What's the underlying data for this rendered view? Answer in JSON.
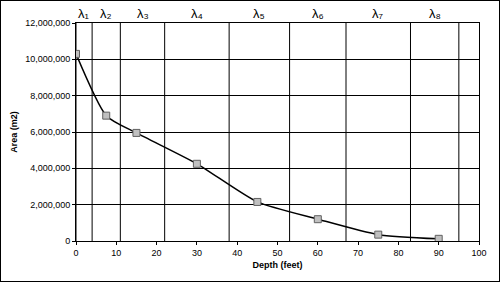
{
  "chart_data": {
    "type": "line",
    "x_label": "Depth (feet)",
    "y_label": "Area (m2)",
    "x": [
      0,
      7.5,
      15,
      30,
      45,
      60,
      75,
      90
    ],
    "values": [
      10300000,
      6900000,
      5950000,
      4250000,
      2150000,
      1200000,
      350000,
      120000
    ],
    "color": "#000000",
    "marker": "square",
    "xlim": [
      0,
      100
    ],
    "xticks": [
      0,
      10,
      20,
      30,
      40,
      50,
      60,
      70,
      80,
      90,
      100
    ],
    "ylim": [
      0,
      12000000
    ],
    "yticks": [
      0,
      {
        "value": 2000000,
        "label": "2,000,000"
      },
      {
        "value": 4000000,
        "label": "4,000,000"
      },
      {
        "value": 6000000,
        "label": "6,000,000"
      },
      {
        "value": 8000000,
        "label": "8,000,000"
      },
      {
        "value": 10000000,
        "label": "10,000,000"
      },
      {
        "value": 12000000,
        "label": "12,000,000"
      }
    ],
    "grid": true,
    "regions": {
      "bounds": [
        0,
        4,
        11,
        22,
        38,
        53,
        67,
        83,
        95
      ],
      "labels": [
        "λ₁",
        "λ₂",
        "λ₃",
        "λ₄",
        "λ₅",
        "λ₆",
        "λ₇",
        "λ₈"
      ]
    }
  }
}
